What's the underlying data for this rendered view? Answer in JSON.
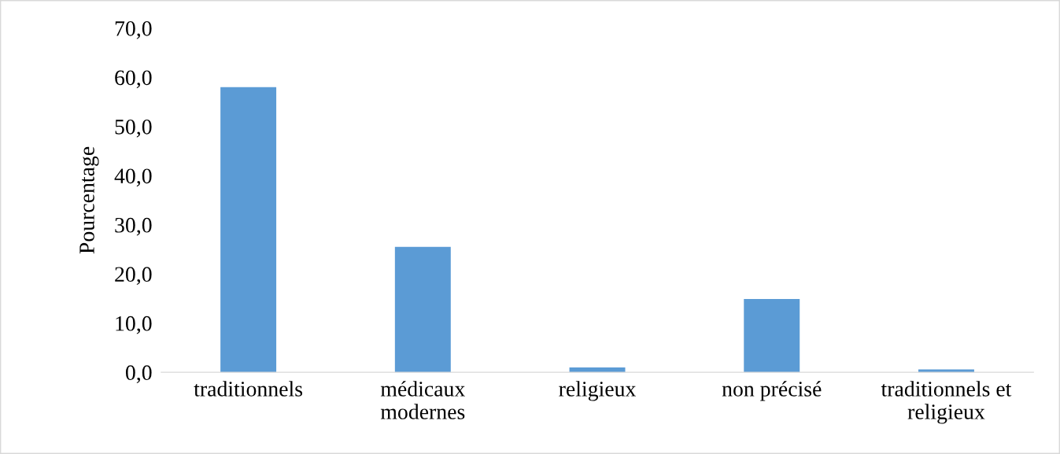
{
  "chart_data": {
    "type": "bar",
    "ylabel": "Pourcentage",
    "categories": [
      "traditionnels",
      "médicaux modernes",
      "religieux",
      "non précisé",
      "traditionnels et religieux"
    ],
    "values": [
      58.0,
      25.5,
      1.0,
      14.9,
      0.6
    ],
    "color": "#5b9bd5",
    "ylim": [
      0,
      70
    ],
    "yticks": [
      {
        "value": 0,
        "label": "0,0"
      },
      {
        "value": 10,
        "label": "10,0"
      },
      {
        "value": 20,
        "label": "20,0"
      },
      {
        "value": 30,
        "label": "30,0"
      },
      {
        "value": 40,
        "label": "40,0"
      },
      {
        "value": 50,
        "label": "50,0"
      },
      {
        "value": 60,
        "label": "60,0"
      },
      {
        "value": 70,
        "label": "70,0"
      }
    ],
    "grid": false
  }
}
